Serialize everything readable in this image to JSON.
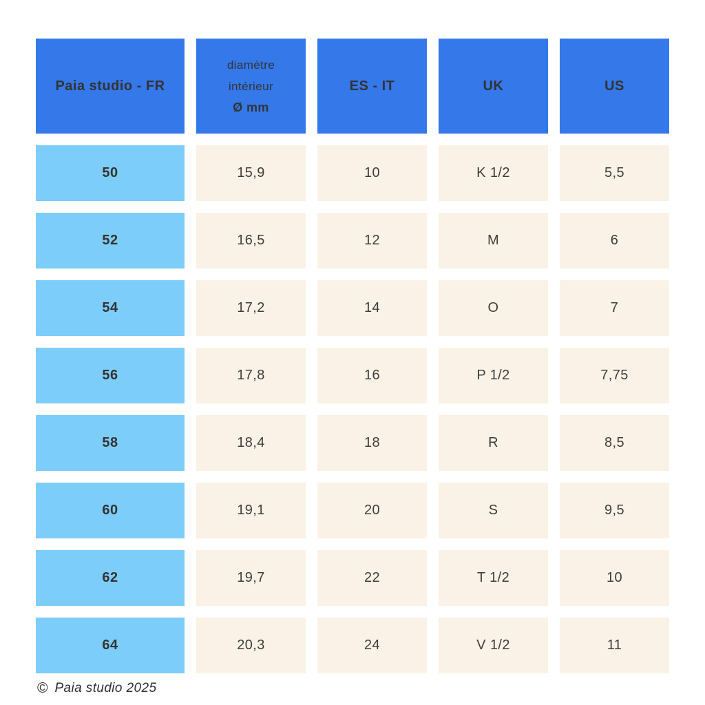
{
  "chart_data": {
    "type": "table",
    "columns": [
      "Paia studio - FR",
      "diamètre intérieur Ø mm",
      "ES - IT",
      "UK",
      "US"
    ],
    "rows": [
      [
        "50",
        "15,9",
        "10",
        "K 1/2",
        "5,5"
      ],
      [
        "52",
        "16,5",
        "12",
        "M",
        "6"
      ],
      [
        "54",
        "17,2",
        "14",
        "O",
        "7"
      ],
      [
        "56",
        "17,8",
        "16",
        "P 1/2",
        "7,75"
      ],
      [
        "58",
        "18,4",
        "18",
        "R",
        "8,5"
      ],
      [
        "60",
        "19,1",
        "20",
        "S",
        "9,5"
      ],
      [
        "62",
        "19,7",
        "22",
        "T 1/2",
        "10"
      ],
      [
        "64",
        "20,3",
        "24",
        "V 1/2",
        "11"
      ]
    ]
  },
  "header": {
    "fr": "Paia studio - FR",
    "diameter_line1": "diamètre",
    "diameter_line2": "intérieur",
    "diameter_line3": "Ø mm",
    "es_it": "ES - IT",
    "uk": "UK",
    "us": "US"
  },
  "footer": {
    "copyright_symbol": "©",
    "text": "Paia studio 2025"
  },
  "colors": {
    "header_blue": "#3478ea",
    "row_label_blue": "#7dcdfa",
    "cell_cream": "#faf2e6",
    "text_dark": "#383838",
    "background": "#ffffff"
  }
}
